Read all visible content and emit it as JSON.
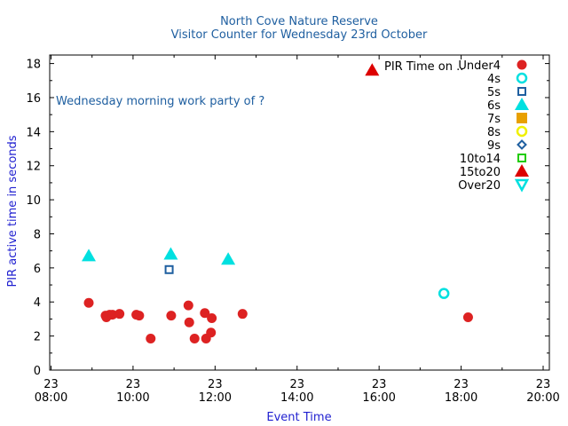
{
  "chart_data": {
    "type": "scatter",
    "title": "North Cove Nature Reserve",
    "subtitle": "Visitor Counter for Wednesday 23rd October",
    "xlabel": "Event Time",
    "ylabel": "PIR active time in seconds",
    "annotation": "Wednesday morning work party of ?",
    "legend_title": "PIR Time on ..",
    "legend_position": "top-right",
    "xlim": [
      8.0,
      20.0
    ],
    "ylim": [
      0,
      18.5
    ],
    "x_ticks": [
      {
        "value": 8,
        "day": "23",
        "time": "08:00"
      },
      {
        "value": 10,
        "day": "23",
        "time": "10:00"
      },
      {
        "value": 12,
        "day": "23",
        "time": "12:00"
      },
      {
        "value": 14,
        "day": "23",
        "time": "14:00"
      },
      {
        "value": 16,
        "day": "23",
        "time": "16:00"
      },
      {
        "value": 18,
        "day": "23",
        "time": "18:00"
      },
      {
        "value": 20,
        "day": "23",
        "time": "20:00"
      }
    ],
    "y_ticks": [
      0,
      2,
      4,
      6,
      8,
      10,
      12,
      14,
      16,
      18
    ],
    "series": [
      {
        "name": "Under4",
        "marker": "circle-filled",
        "color": "#dd2222",
        "points": [
          [
            8.92,
            3.95
          ],
          [
            9.33,
            3.2
          ],
          [
            9.35,
            3.1
          ],
          [
            9.43,
            3.25
          ],
          [
            9.5,
            3.25
          ],
          [
            9.67,
            3.3
          ],
          [
            10.08,
            3.25
          ],
          [
            10.15,
            3.2
          ],
          [
            10.43,
            1.85
          ],
          [
            10.93,
            3.2
          ],
          [
            11.35,
            3.8
          ],
          [
            11.37,
            2.8
          ],
          [
            11.5,
            1.85
          ],
          [
            11.75,
            3.35
          ],
          [
            11.78,
            1.85
          ],
          [
            11.9,
            2.2
          ],
          [
            11.92,
            3.05
          ],
          [
            12.67,
            3.3
          ],
          [
            18.17,
            3.1
          ]
        ]
      },
      {
        "name": "4s",
        "marker": "circle-open",
        "color": "#00e0e0",
        "points": [
          [
            17.58,
            4.5
          ]
        ]
      },
      {
        "name": "5s",
        "marker": "square-open",
        "color": "#1f5fa0",
        "points": [
          [
            10.88,
            5.9
          ]
        ]
      },
      {
        "name": "6s",
        "marker": "triangle-up-filled",
        "color": "#00e0e0",
        "points": [
          [
            8.92,
            6.7
          ],
          [
            10.92,
            6.8
          ],
          [
            12.32,
            6.5
          ]
        ]
      },
      {
        "name": "7s",
        "marker": "square-filled",
        "color": "#e8a000",
        "points": []
      },
      {
        "name": "8s",
        "marker": "circle-open",
        "color": "#f0f000",
        "points": []
      },
      {
        "name": "9s",
        "marker": "diamond-open",
        "color": "#1f5fa0",
        "points": []
      },
      {
        "name": "10to14",
        "marker": "square-open",
        "color": "#22cc00",
        "points": []
      },
      {
        "name": "15to20",
        "marker": "triangle-up-filled",
        "color": "#dd0000",
        "points": [
          [
            15.83,
            17.6
          ]
        ]
      },
      {
        "name": "Over20",
        "marker": "triangle-down-open",
        "color": "#00e0e0",
        "points": []
      }
    ]
  }
}
